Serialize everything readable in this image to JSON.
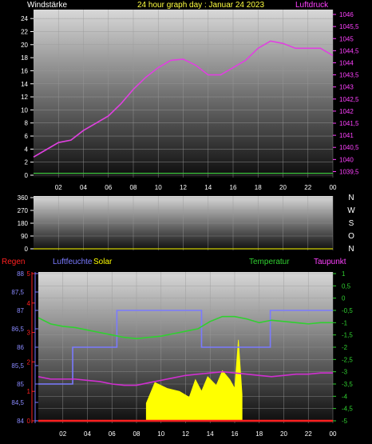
{
  "chart_data": [
    {
      "type": "line",
      "title": "24 hour graph day : Januar 24 2023",
      "left_label": "Windstärke",
      "right_label": "Luftdruck",
      "x_ticks": [
        "02",
        "04",
        "06",
        "08",
        "10",
        "12",
        "14",
        "16",
        "18",
        "20",
        "22",
        "00"
      ],
      "y_left_ticks": [
        "0",
        "2",
        "4",
        "6",
        "8",
        "10",
        "12",
        "14",
        "16",
        "18",
        "20",
        "22",
        "24"
      ],
      "y_left_range": [
        0,
        25
      ],
      "y_right_ticks": [
        "1039,5",
        "1040",
        "1040,5",
        "1041",
        "1041,5",
        "1042",
        "1042,5",
        "1043",
        "1043,5",
        "1044",
        "1044,5",
        "1045",
        "1045,5",
        "1046"
      ],
      "y_right_range": [
        1039.25,
        1046.2
      ],
      "series": [
        {
          "name": "Luftdruck",
          "color": "#e040e0",
          "x": [
            0,
            1,
            2,
            3,
            4,
            5,
            6,
            7,
            8,
            9,
            10,
            11,
            12,
            13,
            14,
            15,
            16,
            17,
            18,
            19,
            20,
            21,
            22,
            23,
            24
          ],
          "y": [
            1040.1,
            1040.4,
            1040.7,
            1040.8,
            1041.2,
            1041.5,
            1041.8,
            1042.3,
            1042.9,
            1043.4,
            1043.8,
            1044.1,
            1044.15,
            1043.9,
            1043.5,
            1043.5,
            1043.8,
            1044.1,
            1044.6,
            1044.9,
            1044.8,
            1044.6,
            1044.6,
            1044.6,
            1044.3
          ]
        },
        {
          "name": "Windstärke",
          "color": "#40d040",
          "x": [
            0,
            24
          ],
          "y": [
            0.3,
            0.3
          ]
        }
      ]
    },
    {
      "type": "line",
      "title": "",
      "y_left_ticks": [
        "0",
        "90",
        "180",
        "270",
        "360"
      ],
      "y_left_range": [
        0,
        360
      ],
      "right_labels": [
        "N",
        "W",
        "S",
        "O",
        "N"
      ],
      "series": [
        {
          "color": "#d0d000",
          "x": [
            0,
            24
          ],
          "y": [
            0,
            0
          ]
        }
      ]
    },
    {
      "type": "line",
      "title": "",
      "legend": [
        "Regen",
        "Luftfeuchte",
        "Solar",
        "Temperatur",
        "Taupunkt"
      ],
      "x_ticks": [
        "02",
        "04",
        "06",
        "08",
        "10",
        "12",
        "14",
        "16",
        "18",
        "20",
        "22",
        "00"
      ],
      "y_left_ticks": [
        "84",
        "84,5",
        "85",
        "85,5",
        "86",
        "86,5",
        "87",
        "87,5",
        "88"
      ],
      "y_left_range": [
        84,
        88
      ],
      "y_rain_ticks": [
        "0",
        "1",
        "2",
        "3",
        "4",
        "5"
      ],
      "y_right_ticks": [
        "1",
        "0,5",
        "0",
        "-0,5",
        "-1",
        "-1,5",
        "-2",
        "-2,5",
        "-3",
        "-3,5",
        "-4",
        "-4,5",
        "-5"
      ],
      "y_right_range": [
        -5,
        1
      ],
      "series": [
        {
          "name": "Luftfeuchte",
          "color": "#7a7aff",
          "x": [
            0,
            2.8,
            2.8,
            6.4,
            6.4,
            13.3,
            13.3,
            18.9,
            18.9,
            24
          ],
          "y": [
            85,
            85,
            86,
            86,
            87,
            87,
            86,
            86,
            87,
            87
          ]
        },
        {
          "name": "Temperatur",
          "color": "#30d030",
          "x": [
            0,
            1,
            2,
            3,
            4,
            5,
            6,
            7,
            8,
            9,
            10,
            11,
            12,
            13,
            14,
            15,
            16,
            17,
            18,
            19,
            20,
            21,
            22,
            23,
            24
          ],
          "y": [
            -0.8,
            -1.05,
            -1.15,
            -1.2,
            -1.3,
            -1.4,
            -1.5,
            -1.6,
            -1.65,
            -1.6,
            -1.55,
            -1.45,
            -1.35,
            -1.25,
            -0.95,
            -0.75,
            -0.75,
            -0.85,
            -1.0,
            -0.9,
            -0.95,
            -1.0,
            -1.05,
            -1.0,
            -1.0
          ]
        },
        {
          "name": "Taupunkt",
          "color": "#d030d0",
          "x": [
            0,
            1,
            2,
            3,
            4,
            5,
            6,
            7,
            8,
            9,
            10,
            11,
            12,
            13,
            14,
            15,
            16,
            17,
            18,
            19,
            20,
            21,
            22,
            23,
            24
          ],
          "y": [
            -3.2,
            -3.3,
            -3.3,
            -3.3,
            -3.35,
            -3.4,
            -3.5,
            -3.55,
            -3.55,
            -3.45,
            -3.35,
            -3.25,
            -3.15,
            -3.1,
            -3.05,
            -3.0,
            -3.05,
            -3.1,
            -3.15,
            -3.2,
            -3.15,
            -3.1,
            -3.1,
            -3.05,
            -3.05
          ]
        },
        {
          "name": "Solar",
          "color": "#ffff00",
          "x": [
            8.8,
            9.5,
            10.5,
            11.5,
            12.3,
            12.8,
            13.3,
            13.8,
            14.5,
            15.0,
            15.6,
            16.0,
            16.3,
            16.6
          ],
          "y": [
            0.12,
            0.26,
            0.22,
            0.2,
            0.16,
            0.28,
            0.2,
            0.3,
            0.24,
            0.34,
            0.28,
            0.22,
            0.55,
            0.18
          ]
        },
        {
          "name": "Regen",
          "color": "#ff2020",
          "x": [
            0,
            24
          ],
          "y": [
            0,
            0
          ]
        }
      ]
    }
  ]
}
